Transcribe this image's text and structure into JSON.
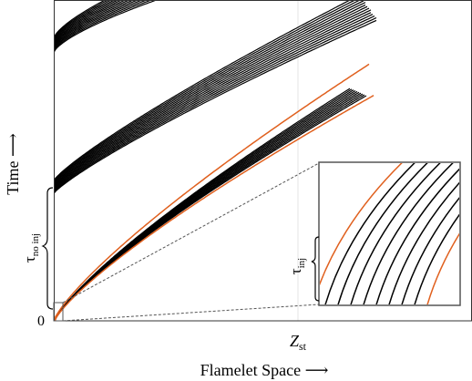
{
  "axes": {
    "y_label": "Time ⟶",
    "x_label": "Flamelet Space ⟶",
    "origin_label": "0",
    "x_tick_label": "Z",
    "x_tick_sub": "st"
  },
  "annotations": {
    "no_inj_symbol": "τ",
    "no_inj_sub": "no inj",
    "inj_symbol": "τ",
    "inj_sub": "inj"
  }
}
